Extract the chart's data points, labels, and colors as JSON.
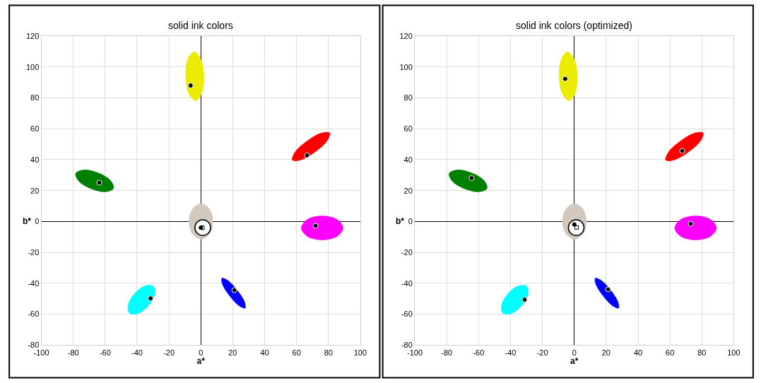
{
  "chart_data": [
    {
      "type": "scatter",
      "title": "solid ink colors",
      "xlabel": "a*",
      "ylabel": "b*",
      "xlim": [
        -100,
        100
      ],
      "ylim": [
        -80,
        120
      ],
      "xticks": [
        -100,
        -80,
        -60,
        -40,
        -20,
        0,
        20,
        40,
        60,
        80,
        100
      ],
      "yticks": [
        -80,
        -60,
        -40,
        -20,
        0,
        20,
        40,
        60,
        80,
        100,
        120
      ],
      "grid": true,
      "series": [
        {
          "type": "area",
          "color": "#ecec00",
          "x": [
            -4.3,
            -0.1,
            1.9,
            0.5,
            -3.3,
            -7.5,
            -9.5,
            -8.1
          ],
          "values": [
            109.8,
            105.2,
            94,
            82.8,
            78.2,
            82.8,
            94,
            105.2
          ]
        },
        {
          "type": "area",
          "color": "#ff0000",
          "x": [
            80.8,
            75.6,
            66.5,
            59.0,
            57.4,
            62.6,
            71.7,
            79.2
          ],
          "values": [
            57.3,
            57.2,
            52,
            44.8,
            39.7,
            39.8,
            45,
            52.2
          ]
        },
        {
          "type": "area",
          "color": "#008000",
          "x": [
            -54.7,
            -56.7,
            -64.5,
            -73.5,
            -78.5,
            -76.5,
            -68.7,
            -59.7
          ],
          "values": [
            21.5,
            26.6,
            31.5,
            33.4,
            31.1,
            26.0,
            21.1,
            19.2
          ]
        },
        {
          "type": "area",
          "color": "#ff00ff",
          "x": [
            89.2,
            85.4,
            76.1,
            66.8,
            63.0,
            66.8,
            76.1,
            85.4
          ],
          "values": [
            -4.2,
            1.3,
            3.6,
            1.3,
            -4.2,
            -9.7,
            -12.0,
            -9.7
          ]
        },
        {
          "type": "area",
          "color": "#00ffff",
          "x": [
            -30.0,
            -35.3,
            -41.8,
            -45.7,
            -44.6,
            -39.3,
            -32.8,
            -28.9
          ],
          "values": [
            -41.8,
            -41.8,
            -47.0,
            -54.4,
            -59.6,
            -59.6,
            -54.4,
            -47.0
          ]
        },
        {
          "type": "area",
          "color": "#0000ff",
          "x": [
            27.8,
            27.4,
            22.9,
            17.0,
            13.2,
            13.6,
            18.1,
            24.0
          ],
          "values": [
            -56.1,
            -52.0,
            -44.6,
            -38.2,
            -36.7,
            -40.8,
            -48.2,
            -54.6
          ]
        },
        {
          "type": "area",
          "color": "#d2c8be",
          "x": [
            7.6,
            5.4,
            0.1,
            -5.2,
            -7.4,
            -5.2,
            0.1,
            5.4
          ],
          "values": [
            0,
            8.1,
            11.5,
            8.1,
            0,
            -8.1,
            -11.5,
            -8.1
          ]
        },
        {
          "type": "area",
          "color": "#ffffff",
          "line_style": "solid",
          "x": [
            6.1,
            4.7,
            1.2,
            -2.3,
            -3.7,
            -2.3,
            1.2,
            4.7
          ],
          "values": [
            -4,
            -0.4,
            1.1,
            -0.4,
            -4,
            -7.6,
            -9.1,
            -7.6
          ]
        },
        {
          "type": "scatter",
          "marker": "circle",
          "color": "#000000",
          "x": [
            -6.4,
            66.6,
            -63.7,
            72,
            -31.5,
            21,
            0
          ],
          "values": [
            88,
            42.8,
            25.1,
            -2.8,
            -49.8,
            -44.5,
            -4
          ]
        },
        {
          "type": "scatter",
          "marker": "square",
          "color": "#000000",
          "x": [
            1
          ],
          "values": [
            -4
          ]
        }
      ]
    },
    {
      "type": "scatter",
      "title": "solid ink colors (optimized)",
      "xlabel": "a*",
      "ylabel": "b*",
      "xlim": [
        -100,
        100
      ],
      "ylim": [
        -80,
        120
      ],
      "xticks": [
        -100,
        -80,
        -60,
        -40,
        -20,
        0,
        20,
        40,
        60,
        80,
        100
      ],
      "yticks": [
        -80,
        -60,
        -40,
        -20,
        0,
        20,
        40,
        60,
        80,
        100,
        120
      ],
      "grid": true,
      "series": [
        {
          "type": "area",
          "color": "#ecec00",
          "x": [
            -4.3,
            -0.1,
            1.9,
            0.5,
            -3.3,
            -7.5,
            -9.5,
            -8.1
          ],
          "values": [
            109.8,
            105.2,
            94,
            82.8,
            78.2,
            82.8,
            94,
            105.2
          ]
        },
        {
          "type": "area",
          "color": "#ff0000",
          "x": [
            80.8,
            75.6,
            66.5,
            59.0,
            57.4,
            62.6,
            71.7,
            79.2
          ],
          "values": [
            57.3,
            57.2,
            52,
            44.8,
            39.7,
            39.8,
            45,
            52.2
          ]
        },
        {
          "type": "area",
          "color": "#008000",
          "x": [
            -54.7,
            -56.7,
            -64.5,
            -73.5,
            -78.5,
            -76.5,
            -68.7,
            -59.7
          ],
          "values": [
            21.5,
            26.6,
            31.5,
            33.4,
            31.1,
            26.0,
            21.1,
            19.2
          ]
        },
        {
          "type": "area",
          "color": "#ff00ff",
          "x": [
            89.2,
            85.4,
            76.1,
            66.8,
            63.0,
            66.8,
            76.1,
            85.4
          ],
          "values": [
            -4.2,
            1.3,
            3.6,
            1.3,
            -4.2,
            -9.7,
            -12.0,
            -9.7
          ]
        },
        {
          "type": "area",
          "color": "#00ffff",
          "x": [
            -30.0,
            -35.3,
            -41.8,
            -45.7,
            -44.6,
            -39.3,
            -32.8,
            -28.9
          ],
          "values": [
            -41.8,
            -41.8,
            -47.0,
            -54.4,
            -59.6,
            -59.6,
            -54.4,
            -47.0
          ]
        },
        {
          "type": "area",
          "color": "#0000ff",
          "x": [
            27.8,
            27.4,
            22.9,
            17.0,
            13.2,
            13.6,
            18.1,
            24.0
          ],
          "values": [
            -56.1,
            -52.0,
            -44.6,
            -38.2,
            -36.7,
            -40.8,
            -48.2,
            -54.6
          ]
        },
        {
          "type": "area",
          "color": "#d2c8be",
          "x": [
            7.6,
            5.4,
            0.1,
            -5.2,
            -7.4,
            -5.2,
            0.1,
            5.4
          ],
          "values": [
            0,
            8.1,
            11.5,
            8.1,
            0,
            -8.1,
            -11.5,
            -8.1
          ]
        },
        {
          "type": "area",
          "color": "#ffffff",
          "line_style": "solid",
          "x": [
            6.1,
            4.7,
            1.2,
            -2.3,
            -3.7,
            -2.3,
            1.2,
            4.7
          ],
          "values": [
            -4,
            -0.4,
            1.1,
            -0.4,
            -4,
            -7.6,
            -9.1,
            -7.6
          ]
        },
        {
          "type": "scatter",
          "marker": "circle",
          "color": "#000000",
          "x": [
            -5.7,
            67.7,
            -64.4,
            73.0,
            -31.1,
            21.2,
            0
          ],
          "values": [
            92.3,
            45.7,
            28.1,
            -1.5,
            -50.6,
            -44.0,
            -1.9
          ]
        },
        {
          "type": "scatter",
          "marker": "square",
          "color": "#000000",
          "x": [
            1.5
          ],
          "values": [
            -3.9
          ]
        }
      ]
    }
  ]
}
